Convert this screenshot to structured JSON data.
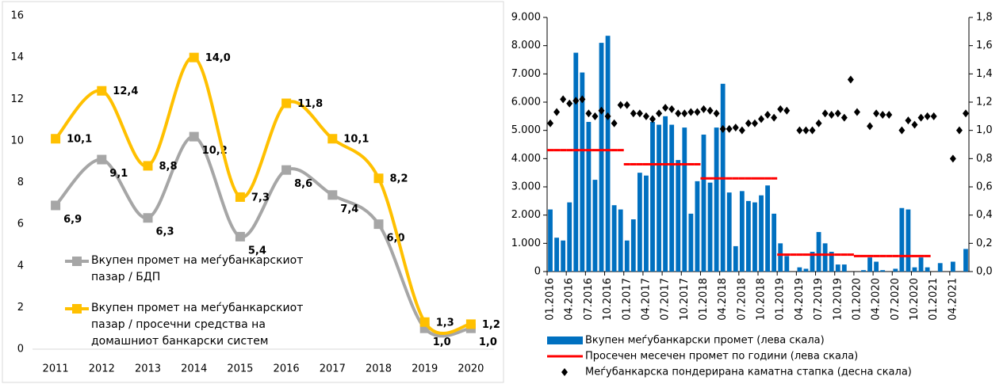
{
  "chart_data": [
    {
      "type": "line",
      "smooth": true,
      "categories": [
        "2011",
        "2012",
        "2013",
        "2014",
        "2015",
        "2016",
        "2017",
        "2018",
        "2019",
        "2020"
      ],
      "ylim": [
        0,
        16
      ],
      "yticks": [
        0,
        2,
        4,
        6,
        8,
        10,
        12,
        14,
        16
      ],
      "legend": "center left",
      "series": [
        {
          "name": "Вкупен промет на меѓубанкарскиот пазар / БДП",
          "color": "#a6a6a6",
          "values": [
            6.9,
            9.1,
            6.3,
            10.2,
            5.4,
            8.6,
            7.4,
            6.0,
            1.0,
            1.0
          ],
          "value_labels": [
            "6,9",
            "9,1",
            "6,3",
            "10,2",
            "5,4",
            "8,6",
            "7,4",
            "6,0",
            "1,0",
            "1,0"
          ]
        },
        {
          "name": "Вкупен промет на меѓубанкарскиот пазар / просечни средства на домашниот банкарски систем",
          "color": "#ffc000",
          "values": [
            10.1,
            12.4,
            8.8,
            14.0,
            7.3,
            11.8,
            10.1,
            8.2,
            1.3,
            1.2
          ],
          "value_labels": [
            "10,1",
            "12,4",
            "8,8",
            "14,0",
            "7,3",
            "11,8",
            "10,1",
            "8,2",
            "1,3",
            "1,2"
          ]
        }
      ]
    },
    {
      "type": "bar",
      "legend": "bottom",
      "categories": [
        "01.2016",
        null,
        null,
        "04.2016",
        null,
        null,
        "07.2016",
        null,
        null,
        "10.2016",
        null,
        null,
        "01.2017",
        null,
        null,
        "04.2017",
        null,
        null,
        "07.2017",
        null,
        null,
        "10.2017",
        null,
        null,
        "01.2018",
        null,
        null,
        "04.2018",
        null,
        null,
        "07.2018",
        null,
        null,
        "10.2018",
        null,
        null,
        "01.2019",
        null,
        null,
        "04.2019",
        null,
        null,
        "07.2019",
        null,
        null,
        "10.2019",
        null,
        null,
        "01.2020",
        null,
        null,
        "04.2020",
        null,
        null,
        "07.2020",
        null,
        null,
        "10.2020",
        null,
        null,
        "01.2021",
        null,
        null,
        "04.2021",
        null,
        null
      ],
      "ylim": [
        0,
        9000
      ],
      "yticks": [
        0,
        {
          "value": 1000,
          "label": "1.000"
        },
        {
          "value": 2000,
          "label": "2.000"
        },
        {
          "value": 3000,
          "label": "3.000"
        },
        {
          "value": 4000,
          "label": "4.000"
        },
        {
          "value": 5000,
          "label": "5.000"
        },
        {
          "value": 6000,
          "label": "6.000"
        },
        {
          "value": 7000,
          "label": "7.000"
        },
        {
          "value": 8000,
          "label": "8.000"
        },
        {
          "value": 9000,
          "label": "9.000"
        }
      ],
      "y2lim": [
        0,
        1.8
      ],
      "y2ticks": [
        {
          "value": 0,
          "label": "0,0"
        },
        {
          "value": 0.2,
          "label": "0,2"
        },
        {
          "value": 0.4,
          "label": "0,4"
        },
        {
          "value": 0.6,
          "label": "0,6"
        },
        {
          "value": 0.8,
          "label": "0,8"
        },
        {
          "value": 1.0,
          "label": "1,0"
        },
        {
          "value": 1.2,
          "label": "1,2"
        },
        {
          "value": 1.4,
          "label": "1,4"
        },
        {
          "value": 1.6,
          "label": "1,6"
        },
        {
          "value": 1.8,
          "label": "1,8"
        }
      ],
      "series": [
        {
          "name": "Вкупен меѓубанкарски промет (лева скала)",
          "type": "bar",
          "color": "#0070c0",
          "values": [
            2200,
            1200,
            1100,
            2450,
            7750,
            7050,
            5300,
            3250,
            8100,
            8350,
            2350,
            2200,
            1100,
            1850,
            3500,
            3400,
            5300,
            5200,
            5500,
            5200,
            3950,
            5100,
            2050,
            3200,
            4850,
            3150,
            5100,
            6650,
            2800,
            900,
            2850,
            2500,
            2450,
            2700,
            3050,
            2050,
            1000,
            550,
            0,
            150,
            100,
            700,
            1400,
            1000,
            700,
            250,
            250,
            0,
            0,
            50,
            500,
            350,
            50,
            0,
            100,
            2250,
            2200,
            150,
            500,
            150,
            0,
            300,
            0,
            350,
            0,
            800
          ]
        },
        {
          "name": "Просечен месечен промет по години (лева скала)",
          "type": "line",
          "color": "#ff0000",
          "values": [
            4300,
            4300,
            4300,
            4300,
            4300,
            4300,
            4300,
            4300,
            4300,
            4300,
            4300,
            4300,
            3800,
            3800,
            3800,
            3800,
            3800,
            3800,
            3800,
            3800,
            3800,
            3800,
            3800,
            3800,
            3300,
            3300,
            3300,
            3300,
            3300,
            3300,
            3300,
            3300,
            3300,
            3300,
            3300,
            3300,
            600,
            600,
            600,
            600,
            600,
            600,
            600,
            600,
            600,
            600,
            600,
            600,
            550,
            550,
            550,
            550,
            550,
            550,
            550,
            550,
            550,
            550,
            550,
            550,
            null,
            null,
            null,
            null,
            null,
            null
          ]
        },
        {
          "name": "Меѓубанкарска пондерирана каматна стапка (десна скала)",
          "type": "scatter",
          "color": "#000000",
          "axis": "y2",
          "values": [
            1.05,
            1.13,
            1.22,
            1.19,
            1.21,
            1.22,
            1.12,
            1.1,
            1.14,
            1.1,
            1.05,
            1.18,
            1.18,
            1.12,
            1.12,
            1.1,
            1.08,
            1.12,
            1.16,
            1.15,
            1.12,
            1.12,
            1.13,
            1.13,
            1.15,
            1.14,
            1.12,
            1.01,
            1.01,
            1.02,
            1.0,
            1.05,
            1.05,
            1.08,
            1.11,
            1.09,
            1.15,
            1.14,
            null,
            1.0,
            1.0,
            1.0,
            1.05,
            1.12,
            1.11,
            1.12,
            1.09,
            1.36,
            1.13,
            null,
            1.03,
            1.12,
            1.11,
            1.11,
            null,
            1.0,
            1.07,
            1.04,
            1.09,
            1.1,
            1.1,
            null,
            null,
            0.8,
            1.0,
            1.12
          ]
        }
      ]
    }
  ]
}
